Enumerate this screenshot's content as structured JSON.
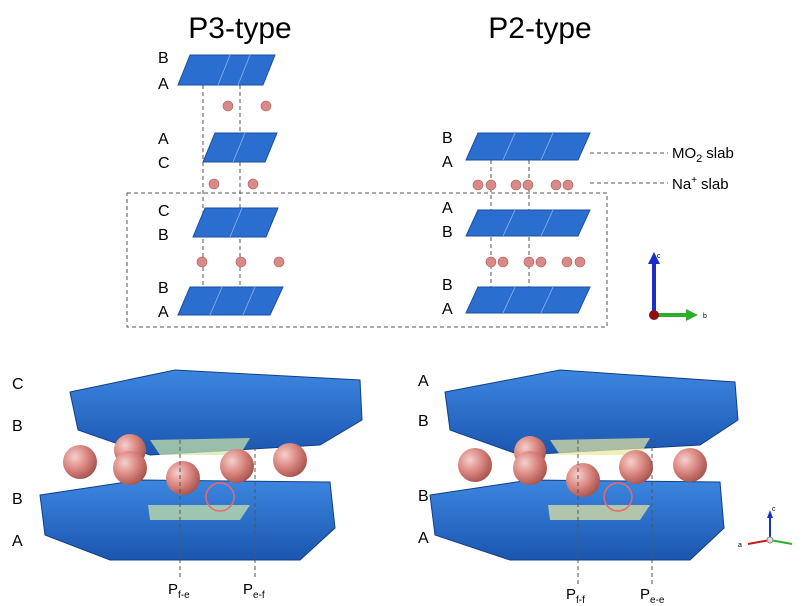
{
  "top": {
    "p3": {
      "title": "P3-type",
      "layers": [
        "B",
        "A",
        "A",
        "C",
        "C",
        "B",
        "B",
        "A"
      ]
    },
    "p2": {
      "title": "P2-type",
      "layers": [
        "B",
        "A",
        "A",
        "B",
        "B",
        "A"
      ]
    },
    "annotations": {
      "mo2": {
        "main": "MO",
        "sub": "2",
        "rest": "slab"
      },
      "na": {
        "main": "Na",
        "sup": "+",
        "rest": "slab"
      }
    },
    "axes": {
      "c": "c",
      "b": "b"
    }
  },
  "bottom": {
    "p3": {
      "layers": [
        "C",
        "B",
        "B",
        "A"
      ],
      "sites": [
        {
          "main": "P",
          "sub": "f-e"
        },
        {
          "main": "P",
          "sub": "e-f"
        }
      ]
    },
    "p2": {
      "layers": [
        "A",
        "B",
        "B",
        "A"
      ],
      "sites": [
        {
          "main": "P",
          "sub": "f-f"
        },
        {
          "main": "P",
          "sub": "e-e"
        }
      ]
    },
    "axes": {
      "c": "c",
      "a": "a"
    }
  }
}
